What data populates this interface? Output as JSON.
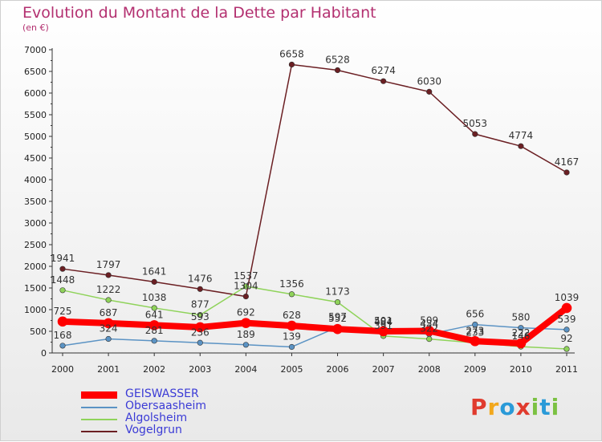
{
  "title": "Evolution du Montant de la Dette par Habitant",
  "subtitle": "(en €)",
  "logo": {
    "text": "Proxiti",
    "colors": [
      "#e03b2e",
      "#f2a81d",
      "#2a9ad8",
      "#e03b2e",
      "#7bc142",
      "#2a9ad8",
      "#7bc142"
    ]
  },
  "chart_data": {
    "type": "line",
    "x": [
      "2000",
      "2001",
      "2002",
      "2003",
      "2004",
      "2005",
      "2006",
      "2007",
      "2008",
      "2009",
      "2010",
      "2011"
    ],
    "ylim": [
      0,
      7000
    ],
    "yticks": [
      "0",
      "500",
      "1000",
      "1500",
      "2000",
      "2500",
      "3000",
      "3500",
      "4000",
      "4500",
      "5000",
      "5500",
      "6000",
      "6500",
      "7000"
    ],
    "grid": false,
    "legend_position": "bottom-left",
    "series": [
      {
        "name": "Vogelgrun",
        "color": "#6b1f23",
        "values": [
          1941,
          1797,
          1641,
          1476,
          1304,
          6658,
          6528,
          6274,
          6030,
          5053,
          4774,
          4167
        ],
        "labels": [
          "1941",
          "1797",
          "1641",
          "1476",
          "1304",
          "6658",
          "6528",
          "6274",
          "6030",
          "5053",
          "4774",
          "4167"
        ]
      },
      {
        "name": "Algolsheim",
        "color": "#8fd35a",
        "values": [
          1448,
          1222,
          1038,
          877,
          1537,
          1356,
          1173,
          391,
          322,
          233,
          146,
          92
        ],
        "labels": [
          "1448",
          "1222",
          "1038",
          "877",
          "1537",
          "1356",
          "1173",
          "391",
          "322",
          "233",
          "146",
          "92"
        ]
      },
      {
        "name": "Obersaasheim",
        "color": "#5b93c4",
        "values": [
          168,
          324,
          281,
          236,
          189,
          139,
          597,
          484,
          434,
          656,
          580,
          539
        ],
        "labels": [
          "168",
          "324",
          "281",
          "236",
          "189",
          "139",
          "597",
          "484",
          "434",
          "656",
          "580",
          "539"
        ]
      },
      {
        "name": "GEISWASSER",
        "color": "#ff0000",
        "values": [
          725,
          687,
          641,
          593,
          692,
          628,
          552,
          501,
          509,
          273,
          222,
          1039
        ],
        "labels": [
          "725",
          "687",
          "641",
          "593",
          "692",
          "628",
          "552",
          "501",
          "509",
          "273",
          "222",
          "1039"
        ]
      }
    ]
  }
}
